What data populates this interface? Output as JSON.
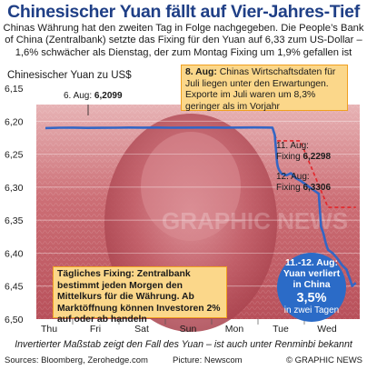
{
  "header": {
    "title": "Chinesischer Yuan fällt auf Vier-Jahres-Tief",
    "subtitle": "Chinas Währung hat den zweiten Tag in Folge nachgegeben. Die People’s Bank of China (Zentralbank) setzte das Fixing für den Yuan auf 6,33 zum US-Dollar – 1,6% schwächer als Dienstag, der zum Montag Fixing um 1,9% gefallen ist"
  },
  "chart_data": {
    "type": "line",
    "ylabel": "Chinesischer Yuan zu US$",
    "y_inverted": true,
    "ylim": [
      6.15,
      6.5
    ],
    "y_ticks": [
      "6,15",
      "6,20",
      "6,25",
      "6,30",
      "6,35",
      "6,40",
      "6,45",
      "6,50"
    ],
    "y_tick_values": [
      6.15,
      6.2,
      6.25,
      6.3,
      6.35,
      6.4,
      6.45,
      6.5
    ],
    "x_labels": [
      "Thu",
      "Fri",
      "Sat",
      "Sun",
      "Mon",
      "Tue",
      "Wed"
    ],
    "grid": true,
    "series": [
      {
        "x": [
          0.0,
          0.3,
          0.6,
          0.9,
          1.2,
          1.5,
          1.8,
          2.1,
          2.4,
          2.7,
          3.0,
          3.3,
          3.6,
          3.9,
          4.2,
          4.5,
          4.8,
          4.9,
          4.95,
          5.0,
          5.02,
          5.05,
          5.1,
          5.2,
          5.3,
          5.4,
          5.5,
          5.6,
          5.7,
          5.8,
          5.9,
          5.95,
          6.0,
          6.05,
          6.1,
          6.2,
          6.3,
          6.4,
          6.5,
          6.6,
          6.62,
          6.7
        ],
        "y": [
          6.2105,
          6.21,
          6.2098,
          6.2102,
          6.2101,
          6.2099,
          6.2097,
          6.2098,
          6.2096,
          6.2099,
          6.2098,
          6.2097,
          6.2096,
          6.2098,
          6.2097,
          6.2095,
          6.2096,
          6.2098,
          6.221,
          6.263,
          6.27,
          6.275,
          6.28,
          6.282,
          6.279,
          6.286,
          6.29,
          6.295,
          6.3,
          6.305,
          6.31,
          6.36,
          6.37,
          6.385,
          6.395,
          6.4,
          6.408,
          6.418,
          6.425,
          6.445,
          6.45,
          6.445
        ]
      },
      {
        "name": "Fixing",
        "x": [
          4.95,
          5.0,
          5.5,
          6.1,
          6.7
        ],
        "y": [
          6.221,
          6.2298,
          6.2298,
          6.3306,
          6.3306
        ]
      }
    ],
    "annotations": [
      {
        "label": "6. Aug:",
        "value": "6,2099"
      },
      {
        "label": "11. Aug:",
        "sub": "Fixing",
        "value": "6,2298"
      },
      {
        "label": "12. Aug:",
        "sub": "Fixing",
        "value": "6,3306"
      }
    ]
  },
  "info_top": {
    "date": "8. Aug:",
    "text": "Chinas Wirtschaftsdaten für Juli liegen unter den Erwartungen. Exporte im Juli waren um 8,3% geringer als im Vorjahr"
  },
  "info_bottom": {
    "text": "Tägliches Fixing: Zentralbank bestimmt jeden Morgen den Mittelkurs für die Währung. Ab Marktöffnung können Investoren 2% auf oder ab handeln"
  },
  "callout": {
    "line1": "11.-12. Aug:",
    "line2": "Yuan verliert",
    "line3": "in China",
    "value": "3,5%",
    "line4": "in zwei Tagen"
  },
  "watermark": "GRAPHIC NEWS",
  "footer": {
    "note": "Invertierter Maßstab zeigt den Fall des Yuan – ist auch unter Renminbi bekannt",
    "sources": "Sources: Bloomberg, Zerohedge.com",
    "picture": "Picture: Newscom",
    "logo": "© GRAPHIC NEWS"
  },
  "colors": {
    "title": "#1f3f86",
    "line": "#3466c4",
    "fixing": "#e3262b",
    "box": "#fbd78a",
    "callout": "#2b6bc7"
  }
}
